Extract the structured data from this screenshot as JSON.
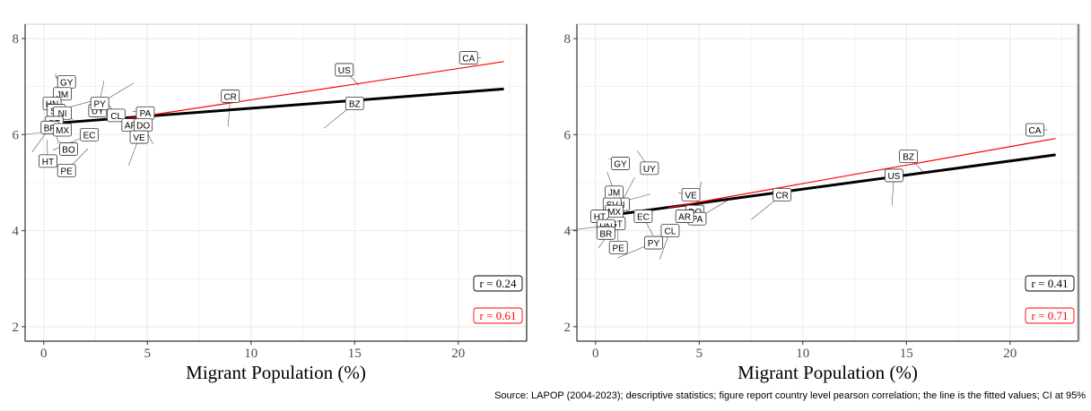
{
  "caption": "Source: LAPOP (2004-2023); descriptive statistics; figure report country level pearson correlation; the line is the fitted values; CI at 95%",
  "colors": {
    "fit_all": "#000000",
    "fit_alt": "#ff0000",
    "grid": "#ebebeb",
    "frame": "#333333"
  },
  "chart_data": [
    {
      "type": "scatter",
      "panel": "left",
      "title": "",
      "xlabel": "Migrant Population (%)",
      "ylabel": "",
      "xlim": [
        -0.9,
        23.3
      ],
      "ylim": [
        1.7,
        8.3
      ],
      "xticks": [
        0,
        5,
        10,
        15,
        20
      ],
      "yticks": [
        2,
        4,
        6,
        8
      ],
      "grid": true,
      "points": [
        {
          "label": "CA",
          "x": 20.5,
          "y": 7.6
        },
        {
          "label": "US",
          "x": 14.5,
          "y": 7.35
        },
        {
          "label": "CR",
          "x": 9.0,
          "y": 6.8
        },
        {
          "label": "BZ",
          "x": 15.0,
          "y": 6.65
        },
        {
          "label": "PA",
          "x": 4.9,
          "y": 6.45
        },
        {
          "label": "CL",
          "x": 3.5,
          "y": 6.4
        },
        {
          "label": "UY",
          "x": 2.6,
          "y": 6.5
        },
        {
          "label": "PY",
          "x": 2.7,
          "y": 6.65
        },
        {
          "label": "AR",
          "x": 4.2,
          "y": 6.2
        },
        {
          "label": "DO",
          "x": 4.8,
          "y": 6.2
        },
        {
          "label": "VE",
          "x": 4.6,
          "y": 5.95
        },
        {
          "label": "EC",
          "x": 2.2,
          "y": 6.0
        },
        {
          "label": "GY",
          "x": 1.1,
          "y": 7.1
        },
        {
          "label": "JM",
          "x": 0.9,
          "y": 6.85
        },
        {
          "label": "HN",
          "x": 0.4,
          "y": 6.65
        },
        {
          "label": "SV",
          "x": 0.6,
          "y": 6.5
        },
        {
          "label": "NI",
          "x": 0.9,
          "y": 6.45
        },
        {
          "label": "GT",
          "x": 0.5,
          "y": 6.25
        },
        {
          "label": "BR",
          "x": 0.3,
          "y": 6.15
        },
        {
          "label": "MX",
          "x": 0.9,
          "y": 6.1
        },
        {
          "label": "BO",
          "x": 1.2,
          "y": 5.7
        },
        {
          "label": "HT",
          "x": 0.2,
          "y": 5.45
        },
        {
          "label": "PE",
          "x": 1.1,
          "y": 5.25
        }
      ],
      "fits": [
        {
          "name": "all",
          "color": "#000000",
          "x": [
            0,
            22.2
          ],
          "y": [
            6.22,
            6.95
          ]
        },
        {
          "name": "alt",
          "color": "#ff0000",
          "x": [
            3.5,
            22.2
          ],
          "y": [
            6.3,
            7.52
          ]
        }
      ],
      "annotations": [
        {
          "text": "r = 0.24",
          "color": "#000000"
        },
        {
          "text": "r = 0.61",
          "color": "#ff0000"
        }
      ]
    },
    {
      "type": "scatter",
      "panel": "right",
      "title": "",
      "xlabel": "Migrant Population (%)",
      "ylabel": "",
      "xlim": [
        -0.9,
        23.3
      ],
      "ylim": [
        1.7,
        8.3
      ],
      "xticks": [
        0,
        5,
        10,
        15,
        20
      ],
      "yticks": [
        2,
        4,
        6,
        8
      ],
      "grid": true,
      "points": [
        {
          "label": "CA",
          "x": 21.2,
          "y": 6.1
        },
        {
          "label": "BZ",
          "x": 15.1,
          "y": 5.55
        },
        {
          "label": "US",
          "x": 14.4,
          "y": 5.15
        },
        {
          "label": "CR",
          "x": 9.0,
          "y": 4.75
        },
        {
          "label": "VE",
          "x": 4.6,
          "y": 4.75
        },
        {
          "label": "UY",
          "x": 2.6,
          "y": 5.3
        },
        {
          "label": "DO",
          "x": 4.8,
          "y": 4.4
        },
        {
          "label": "PA",
          "x": 4.9,
          "y": 4.25
        },
        {
          "label": "AR",
          "x": 4.3,
          "y": 4.3
        },
        {
          "label": "EC",
          "x": 2.3,
          "y": 4.3
        },
        {
          "label": "CL",
          "x": 3.6,
          "y": 4.0
        },
        {
          "label": "PY",
          "x": 2.8,
          "y": 3.75
        },
        {
          "label": "GY",
          "x": 1.2,
          "y": 5.4
        },
        {
          "label": "JM",
          "x": 0.9,
          "y": 4.8
        },
        {
          "label": "NI",
          "x": 1.2,
          "y": 4.55
        },
        {
          "label": "SV",
          "x": 0.8,
          "y": 4.55
        },
        {
          "label": "MX",
          "x": 0.9,
          "y": 4.4
        },
        {
          "label": "HT",
          "x": 0.2,
          "y": 4.3
        },
        {
          "label": "GT",
          "x": 1.0,
          "y": 4.15
        },
        {
          "label": "HN",
          "x": 0.5,
          "y": 4.1
        },
        {
          "label": "BR",
          "x": 0.5,
          "y": 3.95
        },
        {
          "label": "PE",
          "x": 1.1,
          "y": 3.65
        }
      ],
      "fits": [
        {
          "name": "all",
          "color": "#000000",
          "x": [
            0,
            22.2
          ],
          "y": [
            4.28,
            5.58
          ]
        },
        {
          "name": "alt",
          "color": "#ff0000",
          "x": [
            3.5,
            22.2
          ],
          "y": [
            4.48,
            5.92
          ]
        }
      ],
      "annotations": [
        {
          "text": "r = 0.41",
          "color": "#000000"
        },
        {
          "text": "r = 0.71",
          "color": "#ff0000"
        }
      ]
    }
  ]
}
